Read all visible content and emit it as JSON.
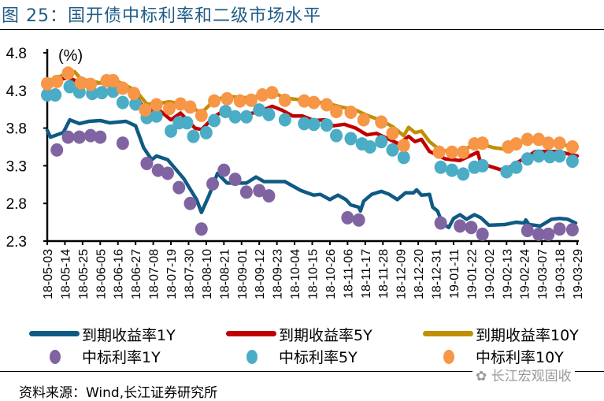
{
  "title": "图 25：国开债中标利率和二级市场水平",
  "source": "资料来源：Wind,长江证券研究所",
  "watermark": "长江宏观固收",
  "chart_data": {
    "type": "line",
    "title": "",
    "ylabel": "(%)",
    "xlabel": "",
    "ylim": [
      2.3,
      4.8
    ],
    "yticks": [
      "2.3",
      "2.8",
      "3.3",
      "3.8",
      "4.3",
      "4.8"
    ],
    "xticks": [
      "18-05-03",
      "18-05-14",
      "18-05-25",
      "18-06-05",
      "18-06-16",
      "18-06-27",
      "18-07-08",
      "18-07-19",
      "18-07-30",
      "18-08-10",
      "18-08-21",
      "18-09-01",
      "18-09-12",
      "18-09-23",
      "18-10-04",
      "18-10-15",
      "18-10-26",
      "18-11-06",
      "18-11-17",
      "18-11-28",
      "18-12-09",
      "18-12-20",
      "18-12-31",
      "19-01-11",
      "19-01-22",
      "19-02-02",
      "19-02-13",
      "19-02-24",
      "19-03-07",
      "19-03-18",
      "19-03-29"
    ],
    "xlim": [
      "2018-05-03",
      "2019-03-29"
    ],
    "grid": false,
    "legend_position": "bottom",
    "series": [
      {
        "name": "到期收益率1Y",
        "kind": "line",
        "color": "#0f5a84",
        "points": [
          [
            "2018-05-03",
            3.77
          ],
          [
            "2018-05-05",
            3.68
          ],
          [
            "2018-05-13",
            3.74
          ],
          [
            "2018-05-17",
            3.91
          ],
          [
            "2018-05-23",
            3.86
          ],
          [
            "2018-05-29",
            3.89
          ],
          [
            "2018-06-05",
            3.9
          ],
          [
            "2018-06-11",
            3.87
          ],
          [
            "2018-06-21",
            3.89
          ],
          [
            "2018-06-27",
            3.83
          ],
          [
            "2018-07-02",
            3.54
          ],
          [
            "2018-07-07",
            3.38
          ],
          [
            "2018-07-10",
            3.43
          ],
          [
            "2018-07-17",
            3.38
          ],
          [
            "2018-07-27",
            3.13
          ],
          [
            "2018-08-04",
            2.85
          ],
          [
            "2018-08-07",
            2.68
          ],
          [
            "2018-08-12",
            2.92
          ],
          [
            "2018-08-17",
            3.2
          ],
          [
            "2018-08-23",
            3.07
          ],
          [
            "2018-09-04",
            3.07
          ],
          [
            "2018-09-10",
            3.15
          ],
          [
            "2018-09-15",
            3.09
          ],
          [
            "2018-09-28",
            3.09
          ],
          [
            "2018-10-08",
            2.97
          ],
          [
            "2018-10-16",
            2.91
          ],
          [
            "2018-10-20",
            2.92
          ],
          [
            "2018-10-26",
            2.85
          ],
          [
            "2018-10-31",
            2.91
          ],
          [
            "2018-11-05",
            2.85
          ],
          [
            "2018-11-08",
            2.78
          ],
          [
            "2018-11-13",
            2.75
          ],
          [
            "2018-11-14",
            2.7
          ],
          [
            "2018-11-16",
            2.83
          ],
          [
            "2018-11-21",
            2.92
          ],
          [
            "2018-11-27",
            2.96
          ],
          [
            "2018-12-02",
            2.92
          ],
          [
            "2018-12-07",
            2.85
          ],
          [
            "2018-12-12",
            2.94
          ],
          [
            "2018-12-17",
            2.94
          ],
          [
            "2018-12-19",
            2.98
          ],
          [
            "2018-12-22",
            2.91
          ],
          [
            "2018-12-27",
            2.92
          ],
          [
            "2018-12-29",
            2.75
          ],
          [
            "2019-01-01",
            2.7
          ],
          [
            "2019-01-04",
            2.54
          ],
          [
            "2019-01-08",
            2.48
          ],
          [
            "2019-01-11",
            2.6
          ],
          [
            "2019-01-15",
            2.65
          ],
          [
            "2019-01-19",
            2.59
          ],
          [
            "2019-01-24",
            2.65
          ],
          [
            "2019-01-28",
            2.61
          ],
          [
            "2019-02-02",
            2.51
          ],
          [
            "2019-02-12",
            2.52
          ],
          [
            "2019-02-19",
            2.55
          ],
          [
            "2019-02-24",
            2.54
          ],
          [
            "2019-02-25",
            2.58
          ],
          [
            "2019-02-27",
            2.52
          ],
          [
            "2019-03-06",
            2.5
          ],
          [
            "2019-03-13",
            2.59
          ],
          [
            "2019-03-18",
            2.6
          ],
          [
            "2019-03-23",
            2.59
          ],
          [
            "2019-03-28",
            2.54
          ]
        ]
      },
      {
        "name": "到期收益率5Y",
        "kind": "line",
        "color": "#c00000",
        "points": [
          [
            "2018-05-03",
            4.4
          ],
          [
            "2018-05-16",
            4.47
          ],
          [
            "2018-05-24",
            4.4
          ],
          [
            "2018-06-05",
            4.4
          ],
          [
            "2018-06-19",
            4.35
          ],
          [
            "2018-06-27",
            4.24
          ],
          [
            "2018-07-04",
            4.0
          ],
          [
            "2018-07-10",
            4.07
          ],
          [
            "2018-07-19",
            3.91
          ],
          [
            "2018-07-25",
            4.0
          ],
          [
            "2018-08-03",
            3.8
          ],
          [
            "2018-08-07",
            3.78
          ],
          [
            "2018-08-15",
            3.95
          ],
          [
            "2018-08-22",
            4.05
          ],
          [
            "2018-08-26",
            3.92
          ],
          [
            "2018-09-04",
            3.98
          ],
          [
            "2018-09-12",
            4.02
          ],
          [
            "2018-09-20",
            4.09
          ],
          [
            "2018-09-26",
            4.04
          ],
          [
            "2018-10-03",
            3.96
          ],
          [
            "2018-10-09",
            3.96
          ],
          [
            "2018-10-16",
            3.9
          ],
          [
            "2018-10-23",
            3.91
          ],
          [
            "2018-10-28",
            3.83
          ],
          [
            "2018-11-04",
            3.85
          ],
          [
            "2018-11-11",
            3.8
          ],
          [
            "2018-11-18",
            3.71
          ],
          [
            "2018-11-24",
            3.73
          ],
          [
            "2018-11-30",
            3.67
          ],
          [
            "2018-12-08",
            3.59
          ],
          [
            "2018-12-14",
            3.69
          ],
          [
            "2018-12-18",
            3.62
          ],
          [
            "2018-12-22",
            3.65
          ],
          [
            "2018-12-27",
            3.49
          ],
          [
            "2019-01-06",
            3.39
          ],
          [
            "2019-01-15",
            3.37
          ],
          [
            "2019-01-26",
            3.48
          ],
          [
            "2019-01-28",
            3.33
          ],
          [
            "2019-02-09",
            3.25
          ],
          [
            "2019-02-14",
            3.27
          ],
          [
            "2019-02-25",
            3.41
          ],
          [
            "2019-03-03",
            3.49
          ],
          [
            "2019-03-17",
            3.49
          ],
          [
            "2019-03-29",
            3.43
          ]
        ]
      },
      {
        "name": "到期收益率10Y",
        "kind": "line",
        "color": "#c09000",
        "points": [
          [
            "2018-05-03",
            4.42
          ],
          [
            "2018-05-16",
            4.53
          ],
          [
            "2018-05-20",
            4.55
          ],
          [
            "2018-05-24",
            4.45
          ],
          [
            "2018-06-05",
            4.4
          ],
          [
            "2018-06-13",
            4.45
          ],
          [
            "2018-06-27",
            4.3
          ],
          [
            "2018-07-04",
            4.12
          ],
          [
            "2018-07-10",
            4.12
          ],
          [
            "2018-07-18",
            4.15
          ],
          [
            "2018-07-25",
            4.12
          ],
          [
            "2018-08-03",
            4.05
          ],
          [
            "2018-08-07",
            4.0
          ],
          [
            "2018-08-15",
            4.17
          ],
          [
            "2018-08-23",
            4.22
          ],
          [
            "2018-09-07",
            4.2
          ],
          [
            "2018-09-20",
            4.28
          ],
          [
            "2018-09-28",
            4.2
          ],
          [
            "2018-10-10",
            4.17
          ],
          [
            "2018-10-16",
            4.15
          ],
          [
            "2018-10-24",
            4.13
          ],
          [
            "2018-11-02",
            4.08
          ],
          [
            "2018-11-11",
            4.04
          ],
          [
            "2018-11-18",
            3.97
          ],
          [
            "2018-11-27",
            3.9
          ],
          [
            "2018-12-04",
            3.82
          ],
          [
            "2018-12-11",
            3.7
          ],
          [
            "2018-12-14",
            3.81
          ],
          [
            "2018-12-18",
            3.74
          ],
          [
            "2018-12-22",
            3.76
          ],
          [
            "2018-12-27",
            3.62
          ],
          [
            "2019-01-03",
            3.5
          ],
          [
            "2019-01-15",
            3.49
          ],
          [
            "2019-01-26",
            3.6
          ],
          [
            "2019-02-05",
            3.54
          ],
          [
            "2019-02-12",
            3.52
          ],
          [
            "2019-02-19",
            3.58
          ],
          [
            "2019-02-26",
            3.64
          ],
          [
            "2019-03-12",
            3.6
          ],
          [
            "2019-03-29",
            3.55
          ]
        ]
      },
      {
        "name": "中标利率1Y",
        "kind": "scatter",
        "color": "#8064a2",
        "points": [
          [
            "2018-05-09",
            3.51
          ],
          [
            "2018-05-16",
            3.68
          ],
          [
            "2018-05-23",
            3.68
          ],
          [
            "2018-05-30",
            3.7
          ],
          [
            "2018-06-05",
            3.68
          ],
          [
            "2018-06-19",
            3.6
          ],
          [
            "2018-07-04",
            3.33
          ],
          [
            "2018-07-11",
            3.24
          ],
          [
            "2018-07-17",
            3.2
          ],
          [
            "2018-07-24",
            3.01
          ],
          [
            "2018-07-31",
            2.8
          ],
          [
            "2018-08-07",
            2.46
          ],
          [
            "2018-08-14",
            3.06
          ],
          [
            "2018-08-21",
            3.24
          ],
          [
            "2018-08-28",
            3.12
          ],
          [
            "2018-09-04",
            2.95
          ],
          [
            "2018-09-12",
            2.97
          ],
          [
            "2018-09-18",
            2.9
          ],
          [
            "2018-11-06",
            2.61
          ],
          [
            "2018-11-13",
            2.58
          ],
          [
            "2019-01-03",
            2.54
          ],
          [
            "2019-01-15",
            2.5
          ],
          [
            "2019-01-22",
            2.48
          ],
          [
            "2019-01-29",
            2.39
          ],
          [
            "2019-02-26",
            2.44
          ],
          [
            "2019-03-05",
            2.39
          ],
          [
            "2019-03-11",
            2.39
          ],
          [
            "2019-03-18",
            2.46
          ],
          [
            "2019-03-26",
            2.45
          ]
        ]
      },
      {
        "name": "中标利率5Y",
        "kind": "scatter",
        "color": "#4bacc6",
        "points": [
          [
            "2018-05-03",
            4.24
          ],
          [
            "2018-05-08",
            4.24
          ],
          [
            "2018-05-17",
            4.35
          ],
          [
            "2018-05-23",
            4.28
          ],
          [
            "2018-05-31",
            4.26
          ],
          [
            "2018-06-06",
            4.27
          ],
          [
            "2018-06-13",
            4.29
          ],
          [
            "2018-06-19",
            4.14
          ],
          [
            "2018-06-27",
            4.12
          ],
          [
            "2018-07-04",
            3.94
          ],
          [
            "2018-07-10",
            3.96
          ],
          [
            "2018-07-19",
            3.76
          ],
          [
            "2018-07-24",
            3.87
          ],
          [
            "2018-07-29",
            3.87
          ],
          [
            "2018-08-02",
            3.69
          ],
          [
            "2018-08-10",
            3.74
          ],
          [
            "2018-08-15",
            3.9
          ],
          [
            "2018-08-22",
            4.02
          ],
          [
            "2018-08-28",
            3.95
          ],
          [
            "2018-09-04",
            3.95
          ],
          [
            "2018-09-12",
            4.04
          ],
          [
            "2018-09-18",
            3.98
          ],
          [
            "2018-09-28",
            3.91
          ],
          [
            "2018-10-10",
            3.86
          ],
          [
            "2018-10-16",
            3.85
          ],
          [
            "2018-10-24",
            3.84
          ],
          [
            "2018-10-30",
            3.7
          ],
          [
            "2018-11-08",
            3.66
          ],
          [
            "2018-11-15",
            3.59
          ],
          [
            "2018-11-20",
            3.55
          ],
          [
            "2018-11-27",
            3.62
          ],
          [
            "2018-12-04",
            3.51
          ],
          [
            "2018-12-11",
            3.41
          ],
          [
            "2019-01-03",
            3.28
          ],
          [
            "2019-01-10",
            3.24
          ],
          [
            "2019-01-17",
            3.19
          ],
          [
            "2019-01-24",
            3.28
          ],
          [
            "2019-01-29",
            3.3
          ],
          [
            "2019-02-13",
            3.22
          ],
          [
            "2019-02-19",
            3.28
          ],
          [
            "2019-02-26",
            3.39
          ],
          [
            "2019-03-05",
            3.43
          ],
          [
            "2019-03-12",
            3.42
          ],
          [
            "2019-03-18",
            3.43
          ],
          [
            "2019-03-26",
            3.36
          ]
        ]
      },
      {
        "name": "中标利率10Y",
        "kind": "scatter",
        "color": "#f79646",
        "points": [
          [
            "2018-05-03",
            4.39
          ],
          [
            "2018-05-09",
            4.42
          ],
          [
            "2018-05-16",
            4.53
          ],
          [
            "2018-05-24",
            4.4
          ],
          [
            "2018-05-30",
            4.38
          ],
          [
            "2018-06-09",
            4.43
          ],
          [
            "2018-06-13",
            4.43
          ],
          [
            "2018-06-19",
            4.33
          ],
          [
            "2018-06-26",
            4.26
          ],
          [
            "2018-07-03",
            4.04
          ],
          [
            "2018-07-10",
            4.11
          ],
          [
            "2018-07-18",
            4.06
          ],
          [
            "2018-07-25",
            4.12
          ],
          [
            "2018-07-31",
            4.08
          ],
          [
            "2018-08-07",
            3.97
          ],
          [
            "2018-08-15",
            4.16
          ],
          [
            "2018-08-23",
            4.19
          ],
          [
            "2018-08-31",
            4.16
          ],
          [
            "2018-09-07",
            4.17
          ],
          [
            "2018-09-14",
            4.24
          ],
          [
            "2018-09-20",
            4.27
          ],
          [
            "2018-09-28",
            4.17
          ],
          [
            "2018-10-10",
            4.16
          ],
          [
            "2018-10-16",
            4.14
          ],
          [
            "2018-10-24",
            4.11
          ],
          [
            "2018-10-30",
            4.02
          ],
          [
            "2018-11-08",
            4.01
          ],
          [
            "2018-11-16",
            3.91
          ],
          [
            "2018-11-27",
            3.88
          ],
          [
            "2018-12-04",
            3.73
          ],
          [
            "2018-12-11",
            3.57
          ],
          [
            "2019-01-02",
            3.48
          ],
          [
            "2019-01-10",
            3.48
          ],
          [
            "2019-01-17",
            3.48
          ],
          [
            "2019-01-24",
            3.59
          ],
          [
            "2019-01-29",
            3.6
          ],
          [
            "2019-02-14",
            3.55
          ],
          [
            "2019-02-19",
            3.59
          ],
          [
            "2019-02-26",
            3.65
          ],
          [
            "2019-03-05",
            3.65
          ],
          [
            "2019-03-11",
            3.6
          ],
          [
            "2019-03-18",
            3.6
          ],
          [
            "2019-03-26",
            3.55
          ]
        ]
      }
    ]
  }
}
